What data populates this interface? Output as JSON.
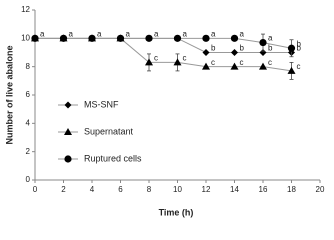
{
  "chart_data": {
    "type": "line",
    "x_label": "Time (h)",
    "y_label": "Number of live abalone",
    "x": [
      0,
      2,
      4,
      6,
      8,
      10,
      12,
      14,
      16,
      18
    ],
    "xlim": [
      0,
      20
    ],
    "xticks": [
      0,
      2,
      4,
      6,
      8,
      10,
      12,
      14,
      16,
      18,
      20
    ],
    "ylim": [
      0,
      12
    ],
    "yticks": [
      0,
      2,
      4,
      6,
      8,
      10,
      12
    ],
    "series": [
      {
        "name": "MS-SNF",
        "color": "#000000",
        "marker": "diamond",
        "values": [
          10,
          10,
          10,
          10,
          10,
          10,
          9,
          9,
          9,
          9
        ],
        "errors": [
          null,
          null,
          null,
          null,
          null,
          null,
          null,
          null,
          null,
          null
        ],
        "labels": [
          null,
          null,
          null,
          null,
          null,
          null,
          "b",
          "b",
          "b",
          "b"
        ]
      },
      {
        "name": "Supernatant",
        "color": "#000000",
        "marker": "triangle",
        "values": [
          10,
          10,
          10,
          10,
          8.3,
          8.3,
          8,
          8,
          8,
          7.7
        ],
        "errors": [
          null,
          null,
          null,
          null,
          0.6,
          0.6,
          null,
          null,
          null,
          0.6
        ],
        "labels": [
          null,
          null,
          null,
          null,
          "c",
          "c",
          "c",
          "c",
          "c",
          "c"
        ]
      },
      {
        "name": "Ruptured cells",
        "color": "#000000",
        "marker": "circle",
        "values": [
          10,
          10,
          10,
          10,
          10,
          10,
          10,
          10,
          9.7,
          9.3
        ],
        "errors": [
          null,
          null,
          null,
          null,
          null,
          null,
          null,
          null,
          0.6,
          0.6
        ],
        "labels": [
          "a",
          "a",
          "a",
          "a",
          "a",
          "a",
          "a",
          "a",
          "a",
          "b"
        ]
      }
    ],
    "legend_position": "center-left"
  }
}
